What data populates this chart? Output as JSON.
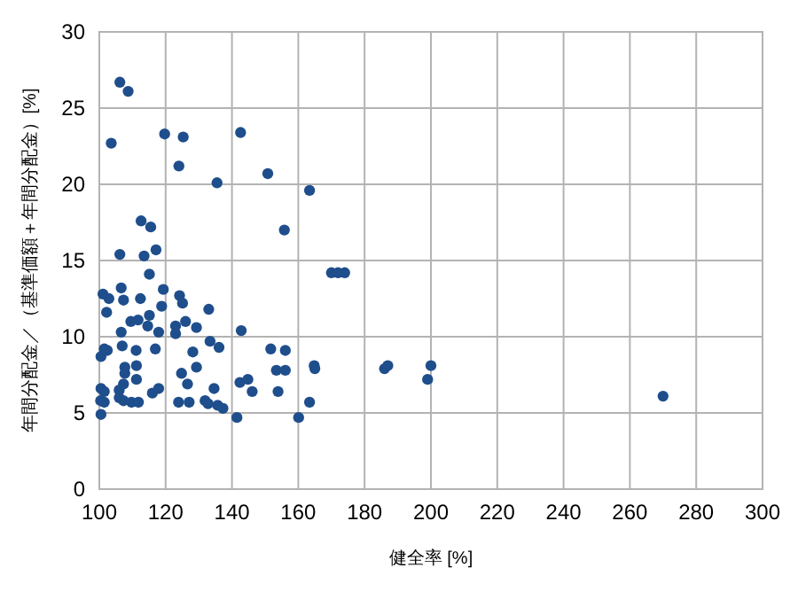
{
  "chart_data": {
    "type": "scatter",
    "xlabel": "健全率 [%]",
    "ylabel": "年間分配金／（基準価額＋年間分配金）[%]",
    "xlim": [
      100,
      300
    ],
    "xticks": [
      100,
      120,
      140,
      160,
      180,
      200,
      220,
      240,
      260,
      280,
      300
    ],
    "ylim": [
      0,
      30
    ],
    "yticks": [
      0,
      5,
      10,
      15,
      20,
      25,
      30
    ],
    "grid": true,
    "marker": "circle",
    "series": [
      {
        "color": "#1f4e8c",
        "x": [
          106.2,
          108.7,
          103.6,
          119.7,
          125.3,
          142.6,
          124.0,
          135.5,
          150.8,
          163.4,
          112.6,
          115.5,
          155.8,
          106.2,
          113.5,
          117.1,
          115.1,
          101.1,
          102.9,
          106.6,
          107.3,
          102.2,
          112.4,
          119.3,
          124.2,
          125.1,
          118.8,
          115.1,
          133.0,
          109.5,
          111.7,
          106.6,
          114.6,
          117.9,
          123.0,
          123.0,
          126.0,
          129.3,
          142.8,
          133.4,
          136.1,
          101.5,
          100.5,
          102.4,
          106.9,
          111.1,
          116.9,
          128.2,
          151.7,
          156.1,
          164.8,
          107.7,
          111.2,
          107.7,
          124.8,
          129.3,
          153.4,
          156.1,
          111.2,
          107.3,
          106.0,
          100.5,
          101.5,
          126.6,
          142.4,
          144.8,
          146.1,
          153.9,
          134.6,
          116.0,
          117.9,
          100.4,
          101.5,
          100.5,
          106.0,
          107.3,
          109.7,
          111.8,
          123.9,
          127.1,
          131.9,
          132.8,
          135.7,
          137.3,
          141.5,
          160.1,
          163.4,
          170.0,
          172.0,
          174.0,
          165.0,
          186.0,
          187.0,
          200.0,
          199.0,
          270.0
        ],
        "values": [
          26.7,
          26.1,
          22.7,
          23.3,
          23.1,
          23.4,
          21.2,
          20.1,
          20.7,
          19.6,
          17.6,
          17.2,
          17.0,
          15.4,
          15.3,
          15.7,
          14.1,
          12.8,
          12.5,
          13.2,
          12.4,
          11.6,
          12.5,
          13.1,
          12.7,
          12.2,
          12.0,
          11.4,
          11.8,
          11.0,
          11.1,
          10.3,
          10.7,
          10.3,
          10.7,
          10.2,
          11.0,
          10.6,
          10.4,
          9.7,
          9.3,
          9.2,
          8.7,
          9.1,
          9.4,
          9.1,
          9.2,
          9.0,
          9.2,
          9.1,
          8.1,
          8.0,
          8.1,
          7.6,
          7.6,
          8.0,
          7.8,
          7.8,
          7.2,
          6.9,
          6.5,
          6.6,
          6.4,
          6.9,
          7.0,
          7.2,
          6.4,
          6.4,
          6.6,
          6.3,
          6.6,
          5.8,
          5.7,
          4.9,
          6.0,
          5.8,
          5.7,
          5.7,
          5.7,
          5.7,
          5.8,
          5.6,
          5.5,
          5.3,
          4.7,
          4.7,
          5.7,
          14.2,
          14.2,
          14.2,
          7.9,
          7.9,
          8.1,
          8.1,
          7.2,
          6.1
        ]
      }
    ]
  }
}
